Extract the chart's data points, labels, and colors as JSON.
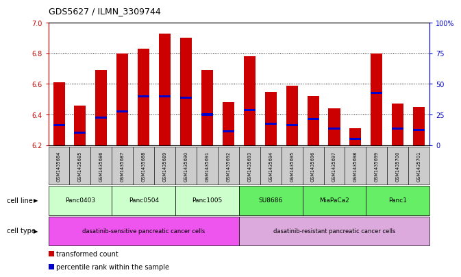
{
  "title": "GDS5627 / ILMN_3309744",
  "samples": [
    "GSM1435684",
    "GSM1435685",
    "GSM1435686",
    "GSM1435687",
    "GSM1435688",
    "GSM1435689",
    "GSM1435690",
    "GSM1435691",
    "GSM1435692",
    "GSM1435693",
    "GSM1435694",
    "GSM1435695",
    "GSM1435696",
    "GSM1435697",
    "GSM1435698",
    "GSM1435699",
    "GSM1435700",
    "GSM1435701"
  ],
  "bar_values": [
    6.61,
    6.46,
    6.69,
    6.8,
    6.83,
    6.93,
    6.9,
    6.69,
    6.48,
    6.78,
    6.55,
    6.59,
    6.52,
    6.44,
    6.31,
    6.8,
    6.47,
    6.45
  ],
  "blue_values": [
    6.33,
    6.28,
    6.38,
    6.42,
    6.52,
    6.52,
    6.51,
    6.4,
    6.29,
    6.43,
    6.34,
    6.33,
    6.37,
    6.31,
    6.24,
    6.54,
    6.31,
    6.3
  ],
  "ymin": 6.2,
  "ymax": 7.0,
  "yticks": [
    6.2,
    6.4,
    6.6,
    6.8,
    7.0
  ],
  "grid_values": [
    6.4,
    6.6,
    6.8
  ],
  "right_yticks_vals": [
    0,
    25,
    50,
    75,
    100
  ],
  "right_yticks_labels": [
    "0",
    "25",
    "50",
    "75",
    "100%"
  ],
  "bar_color": "#cc0000",
  "blue_color": "#0000cc",
  "bar_width": 0.55,
  "cell_lines": [
    {
      "label": "Panc0403",
      "start": 0,
      "end": 2,
      "color": "#ccffcc"
    },
    {
      "label": "Panc0504",
      "start": 3,
      "end": 5,
      "color": "#ccffcc"
    },
    {
      "label": "Panc1005",
      "start": 6,
      "end": 8,
      "color": "#ccffcc"
    },
    {
      "label": "SU8686",
      "start": 9,
      "end": 11,
      "color": "#66ee66"
    },
    {
      "label": "MiaPaCa2",
      "start": 12,
      "end": 14,
      "color": "#66ee66"
    },
    {
      "label": "Panc1",
      "start": 15,
      "end": 17,
      "color": "#66ee66"
    }
  ],
  "cell_types": [
    {
      "label": "dasatinib-sensitive pancreatic cancer cells",
      "start": 0,
      "end": 8,
      "color": "#ee55ee"
    },
    {
      "label": "dasatinib-resistant pancreatic cancer cells",
      "start": 9,
      "end": 17,
      "color": "#ddaadd"
    }
  ],
  "cell_line_row_label": "cell line",
  "cell_type_row_label": "cell type",
  "legend_items": [
    {
      "color": "#cc0000",
      "label": "transformed count"
    },
    {
      "color": "#0000cc",
      "label": "percentile rank within the sample"
    }
  ],
  "sample_box_color": "#cccccc",
  "spine_left_color": "#cc0000",
  "spine_right_color": "#0000cc"
}
